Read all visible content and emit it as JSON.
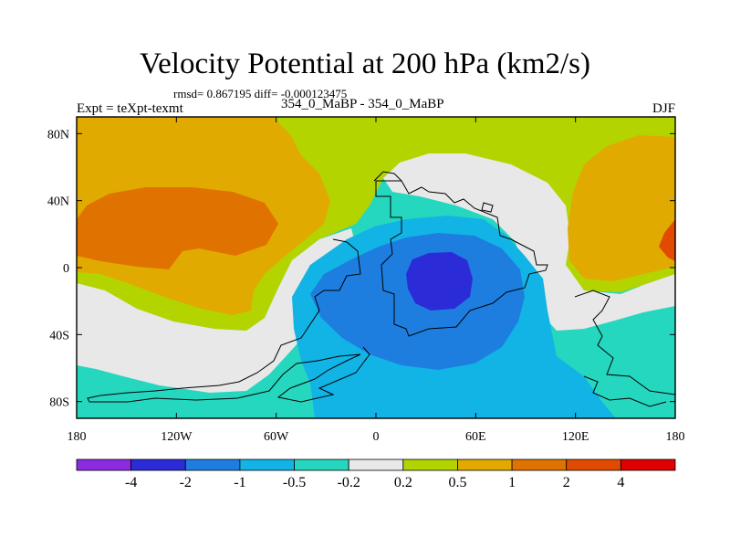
{
  "title": "Velocity Potential at 200 hPa (km2/s)",
  "stats_line": "rmsd= 0.867195 diff= -0.000123475",
  "experiment_label": "Expt = teXpt-texmt",
  "case_label": "354_0_MaBP - 354_0_MaBP",
  "season_label": "DJF",
  "axes": {
    "lon_ticks": [
      "180",
      "120W",
      "60W",
      "0",
      "60E",
      "120E",
      "180"
    ],
    "lat_ticks": [
      "80N",
      "40N",
      "0",
      "40S",
      "80S"
    ]
  },
  "colorbar": {
    "colors": [
      "#8a2be2",
      "#2b2bd8",
      "#1e7ee0",
      "#12b4e6",
      "#26d7c0",
      "#e8e8e8",
      "#b4d400",
      "#e0aa00",
      "#e07300",
      "#e04b00",
      "#e00000"
    ],
    "labels": [
      "-4",
      "-2",
      "-1",
      "-0.5",
      "-0.2",
      "0.2",
      "0.5",
      "1",
      "2",
      "4"
    ]
  },
  "field_colors": {
    "neg_1": "#12b4e6",
    "neg_2": "#1e7ee0",
    "neg_4": "#2b2bd8",
    "neg_05": "#26d7c0",
    "neutral": "#e8e8e8",
    "pos_02": "#b4d400",
    "pos_05": "#e0aa00",
    "pos_1": "#e07300",
    "pos_2": "#e04b00"
  }
}
